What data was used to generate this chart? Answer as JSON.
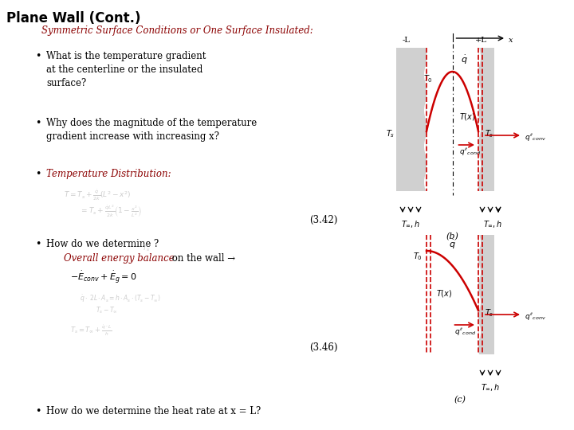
{
  "title": "Plane Wall (Cont.)",
  "subtitle": "Symmetric Surface Conditions or One Surface Insulated:",
  "bg_color": "#ffffff",
  "dark_red": "#8B0000",
  "black": "#000000",
  "gray_fade": "#bbbbbb",
  "eq_342": "(3.42)",
  "eq_346": "(3.46)"
}
